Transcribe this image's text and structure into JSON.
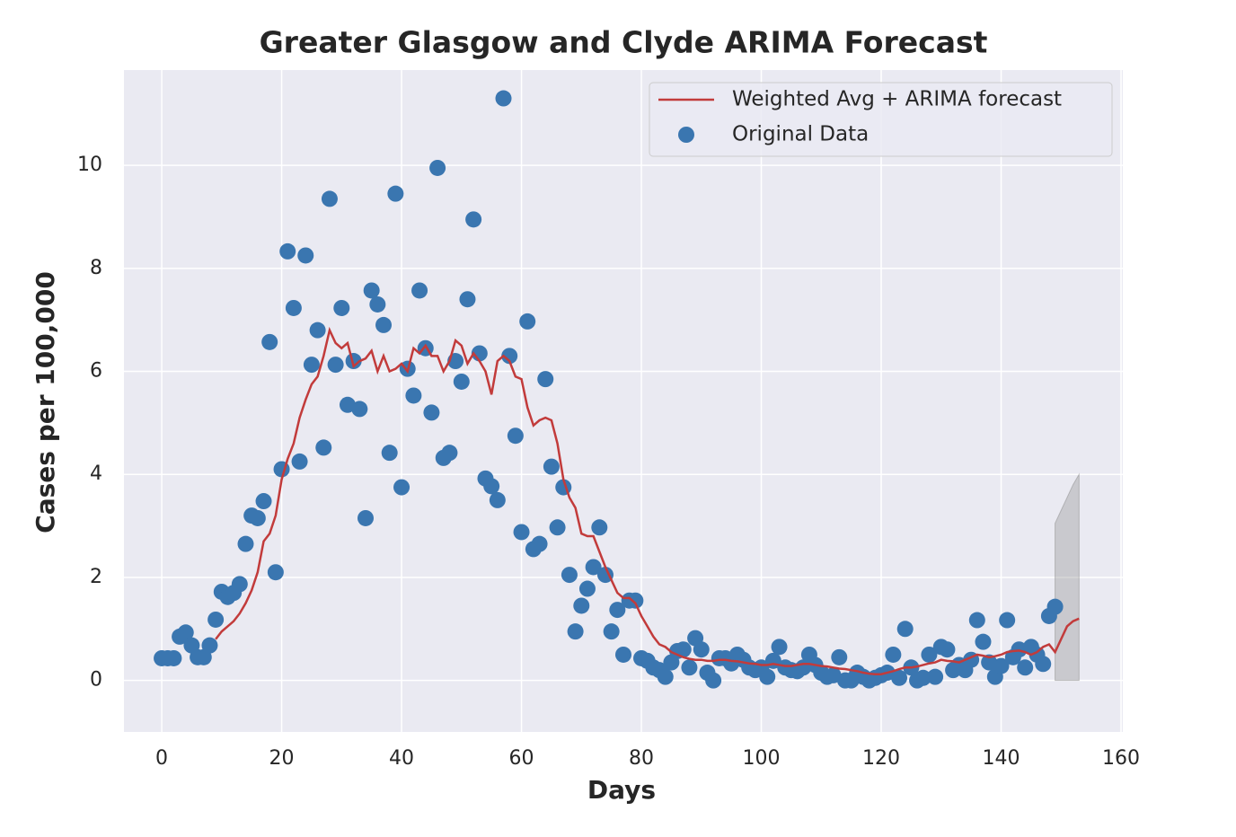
{
  "chart_data": {
    "type": "line",
    "title": "Greater Glasgow and Clyde ARIMA Forecast",
    "xlabel": "Days",
    "ylabel": "Cases per 100,000",
    "xlim": [
      -6.3,
      160.3
    ],
    "ylim": [
      -1,
      11.85
    ],
    "xticks": [
      0,
      20,
      40,
      60,
      80,
      100,
      120,
      140,
      160
    ],
    "yticks": [
      0,
      2,
      4,
      6,
      8,
      10
    ],
    "grid": true,
    "background": "#eaeaf2",
    "legend": "upper right",
    "series": [
      {
        "name": "Weighted Avg + ARIMA forecast",
        "type": "line",
        "color": "#c23b3b",
        "x": [
          9,
          10,
          11,
          12,
          13,
          14,
          15,
          16,
          17,
          18,
          19,
          20,
          21,
          22,
          23,
          24,
          25,
          26,
          27,
          28,
          29,
          30,
          31,
          32,
          33,
          34,
          35,
          36,
          37,
          38,
          39,
          40,
          41,
          42,
          43,
          44,
          45,
          46,
          47,
          48,
          49,
          50,
          51,
          52,
          53,
          54,
          55,
          56,
          57,
          58,
          59,
          60,
          61,
          62,
          63,
          64,
          65,
          66,
          67,
          68,
          69,
          70,
          71,
          72,
          73,
          74,
          75,
          76,
          77,
          78,
          79,
          80,
          81,
          82,
          83,
          84,
          85,
          86,
          87,
          88,
          89,
          90,
          91,
          92,
          93,
          94,
          95,
          96,
          97,
          98,
          99,
          100,
          101,
          102,
          103,
          104,
          105,
          106,
          107,
          108,
          109,
          110,
          111,
          112,
          113,
          114,
          115,
          116,
          117,
          118,
          119,
          120,
          121,
          122,
          123,
          124,
          125,
          126,
          127,
          128,
          129,
          130,
          131,
          132,
          133,
          134,
          135,
          136,
          137,
          138,
          139,
          140,
          141,
          142,
          143,
          144,
          145,
          146,
          147,
          148,
          149,
          150,
          151,
          152,
          153
        ],
        "values": [
          0.8,
          0.95,
          1.05,
          1.15,
          1.3,
          1.5,
          1.75,
          2.1,
          2.7,
          2.85,
          3.2,
          3.9,
          4.3,
          4.6,
          5.1,
          5.45,
          5.75,
          5.9,
          6.3,
          6.8,
          6.55,
          6.45,
          6.55,
          6.1,
          6.2,
          6.25,
          6.4,
          6.0,
          6.3,
          6.0,
          6.05,
          6.15,
          6.0,
          6.45,
          6.35,
          6.5,
          6.3,
          6.3,
          6.0,
          6.2,
          6.6,
          6.5,
          6.15,
          6.35,
          6.2,
          6.0,
          5.55,
          6.2,
          6.3,
          6.2,
          5.9,
          5.85,
          5.3,
          4.95,
          5.05,
          5.1,
          5.05,
          4.6,
          3.9,
          3.55,
          3.35,
          2.85,
          2.8,
          2.8,
          2.5,
          2.2,
          1.95,
          1.7,
          1.6,
          1.6,
          1.5,
          1.25,
          1.05,
          0.85,
          0.7,
          0.65,
          0.55,
          0.5,
          0.45,
          0.42,
          0.4,
          0.4,
          0.38,
          0.38,
          0.4,
          0.4,
          0.38,
          0.37,
          0.35,
          0.33,
          0.32,
          0.3,
          0.3,
          0.32,
          0.3,
          0.28,
          0.28,
          0.3,
          0.32,
          0.32,
          0.3,
          0.28,
          0.27,
          0.25,
          0.23,
          0.22,
          0.2,
          0.18,
          0.15,
          0.13,
          0.12,
          0.12,
          0.15,
          0.18,
          0.22,
          0.25,
          0.25,
          0.27,
          0.3,
          0.33,
          0.35,
          0.4,
          0.38,
          0.37,
          0.35,
          0.4,
          0.45,
          0.5,
          0.48,
          0.45,
          0.47,
          0.5,
          0.55,
          0.57,
          0.58,
          0.55,
          0.5,
          0.55,
          0.65,
          0.7,
          0.55,
          0.8,
          1.05,
          1.15,
          1.2
        ]
      },
      {
        "name": "Original Data",
        "type": "scatter",
        "color": "#3a76b0",
        "x": [
          0,
          1,
          2,
          3,
          4,
          5,
          6,
          7,
          8,
          9,
          10,
          11,
          12,
          13,
          14,
          15,
          16,
          17,
          18,
          19,
          20,
          21,
          22,
          23,
          24,
          25,
          26,
          27,
          28,
          29,
          30,
          31,
          32,
          33,
          34,
          35,
          36,
          37,
          38,
          39,
          40,
          41,
          42,
          43,
          44,
          45,
          46,
          47,
          48,
          49,
          50,
          51,
          52,
          53,
          54,
          55,
          56,
          57,
          58,
          59,
          60,
          61,
          62,
          63,
          64,
          65,
          66,
          67,
          68,
          69,
          70,
          71,
          72,
          73,
          74,
          75,
          76,
          77,
          78,
          79,
          80,
          81,
          82,
          83,
          84,
          85,
          86,
          87,
          88,
          89,
          90,
          91,
          92,
          93,
          94,
          95,
          96,
          97,
          98,
          99,
          100,
          101,
          102,
          103,
          104,
          105,
          106,
          107,
          108,
          109,
          110,
          111,
          112,
          113,
          114,
          115,
          116,
          117,
          118,
          119,
          120,
          121,
          122,
          123,
          124,
          125,
          126,
          127,
          128,
          129,
          130,
          131,
          132,
          133,
          134,
          135,
          136,
          137,
          138,
          139,
          140,
          141,
          142,
          143,
          144,
          145,
          146,
          147,
          148,
          149
        ],
        "values": [
          0.43,
          0.43,
          0.43,
          0.85,
          0.93,
          0.68,
          0.45,
          0.45,
          0.68,
          1.18,
          1.72,
          1.62,
          1.7,
          1.87,
          2.65,
          3.2,
          3.15,
          3.48,
          6.57,
          2.1,
          4.1,
          8.33,
          7.23,
          4.25,
          8.25,
          6.13,
          6.8,
          4.52,
          9.35,
          6.13,
          7.23,
          5.35,
          6.2,
          5.27,
          3.15,
          7.57,
          7.3,
          6.9,
          4.42,
          9.45,
          3.75,
          6.05,
          5.53,
          7.57,
          6.45,
          5.2,
          9.95,
          4.32,
          4.42,
          6.2,
          5.8,
          7.4,
          8.95,
          6.35,
          3.92,
          3.77,
          3.5,
          11.3,
          6.3,
          4.75,
          2.88,
          6.97,
          2.55,
          2.65,
          5.85,
          4.15,
          2.97,
          3.75,
          2.05,
          0.95,
          1.45,
          1.78,
          2.2,
          2.97,
          2.05,
          0.95,
          1.37,
          0.5,
          1.55,
          1.55,
          0.43,
          0.38,
          0.25,
          0.2,
          0.07,
          0.35,
          0.57,
          0.6,
          0.25,
          0.82,
          0.6,
          0.15,
          0.0,
          0.43,
          0.43,
          0.33,
          0.5,
          0.4,
          0.25,
          0.2,
          0.25,
          0.07,
          0.38,
          0.65,
          0.25,
          0.2,
          0.18,
          0.25,
          0.5,
          0.3,
          0.15,
          0.07,
          0.1,
          0.45,
          0.0,
          0.0,
          0.15,
          0.07,
          0.0,
          0.05,
          0.1,
          0.15,
          0.5,
          0.05,
          1.0,
          0.25,
          0.0,
          0.05,
          0.5,
          0.07,
          0.65,
          0.6,
          0.2,
          0.3,
          0.2,
          0.4,
          1.17,
          0.75,
          0.35,
          0.07,
          0.28,
          1.17,
          0.45,
          0.6,
          0.25,
          0.65,
          0.5,
          0.32,
          1.25,
          1.43
        ]
      }
    ],
    "band": {
      "x": [
        149,
        150,
        151,
        152,
        153
      ],
      "upper": [
        3.05,
        3.3,
        3.55,
        3.8,
        4.0
      ],
      "lower": [
        0,
        0,
        0,
        0,
        0
      ],
      "color": "#8c8c8c"
    }
  }
}
